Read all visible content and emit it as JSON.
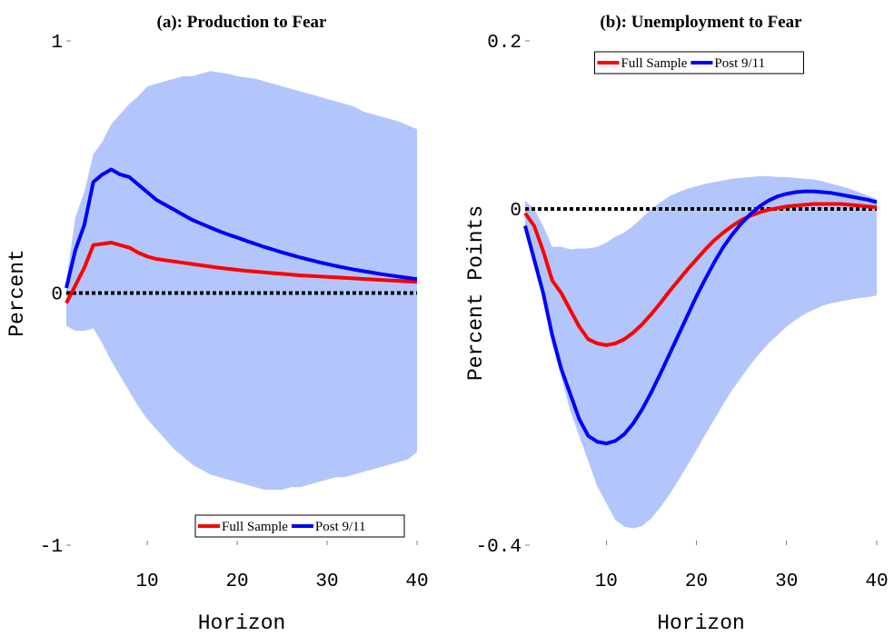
{
  "chart_data": [
    {
      "type": "line",
      "title": "(a): Production to Fear",
      "x_label": "Horizon",
      "y_label": "Percent",
      "x": [
        1,
        2,
        3,
        4,
        5,
        6,
        7,
        8,
        9,
        10,
        11,
        12,
        13,
        14,
        15,
        16,
        17,
        18,
        19,
        20,
        21,
        22,
        23,
        24,
        25,
        26,
        27,
        28,
        29,
        30,
        31,
        32,
        33,
        34,
        35,
        36,
        37,
        38,
        39,
        40
      ],
      "xlim": [
        1,
        40
      ],
      "xticks": [
        10,
        20,
        30,
        40
      ],
      "ylim": [
        -1,
        1
      ],
      "yticks": [
        -1,
        0,
        1
      ],
      "hline": 0,
      "legend": "lower right",
      "band": {
        "color": "#b3c6fb",
        "upper": [
          0.05,
          0.3,
          0.4,
          0.55,
          0.6,
          0.67,
          0.71,
          0.75,
          0.78,
          0.82,
          0.83,
          0.84,
          0.85,
          0.86,
          0.86,
          0.87,
          0.88,
          0.875,
          0.87,
          0.86,
          0.855,
          0.85,
          0.84,
          0.83,
          0.82,
          0.81,
          0.8,
          0.79,
          0.78,
          0.77,
          0.76,
          0.75,
          0.74,
          0.72,
          0.71,
          0.7,
          0.69,
          0.68,
          0.665,
          0.65
        ],
        "lower": [
          -0.13,
          -0.15,
          -0.15,
          -0.14,
          -0.2,
          -0.27,
          -0.33,
          -0.39,
          -0.45,
          -0.5,
          -0.54,
          -0.58,
          -0.62,
          -0.65,
          -0.68,
          -0.7,
          -0.72,
          -0.73,
          -0.74,
          -0.75,
          -0.76,
          -0.77,
          -0.78,
          -0.78,
          -0.78,
          -0.77,
          -0.77,
          -0.76,
          -0.75,
          -0.74,
          -0.73,
          -0.73,
          -0.72,
          -0.71,
          -0.7,
          -0.69,
          -0.68,
          -0.67,
          -0.66,
          -0.63
        ]
      },
      "series": [
        {
          "name": "Full Sample",
          "color": "#ff0000",
          "values": [
            -0.04,
            0.03,
            0.1,
            0.19,
            0.195,
            0.2,
            0.19,
            0.18,
            0.16,
            0.145,
            0.135,
            0.13,
            0.125,
            0.12,
            0.115,
            0.11,
            0.105,
            0.1,
            0.096,
            0.092,
            0.088,
            0.085,
            0.082,
            0.079,
            0.076,
            0.073,
            0.07,
            0.068,
            0.066,
            0.064,
            0.062,
            0.06,
            0.058,
            0.056,
            0.054,
            0.052,
            0.05,
            0.048,
            0.046,
            0.044
          ]
        },
        {
          "name": "Post 9/11",
          "color": "#0000ff",
          "values": [
            0.02,
            0.17,
            0.27,
            0.44,
            0.47,
            0.49,
            0.47,
            0.46,
            0.43,
            0.4,
            0.37,
            0.35,
            0.33,
            0.31,
            0.29,
            0.275,
            0.26,
            0.245,
            0.232,
            0.22,
            0.207,
            0.195,
            0.183,
            0.172,
            0.161,
            0.151,
            0.141,
            0.132,
            0.123,
            0.115,
            0.107,
            0.1,
            0.093,
            0.087,
            0.081,
            0.075,
            0.07,
            0.065,
            0.06,
            0.055
          ]
        }
      ]
    },
    {
      "type": "line",
      "title": "(b): Unemployment to Fear",
      "x_label": "Horizon",
      "y_label": "Percent Points",
      "x": [
        1,
        2,
        3,
        4,
        5,
        6,
        7,
        8,
        9,
        10,
        11,
        12,
        13,
        14,
        15,
        16,
        17,
        18,
        19,
        20,
        21,
        22,
        23,
        24,
        25,
        26,
        27,
        28,
        29,
        30,
        31,
        32,
        33,
        34,
        35,
        36,
        37,
        38,
        39,
        40
      ],
      "xlim": [
        1,
        40
      ],
      "xticks": [
        10,
        20,
        30,
        40
      ],
      "ylim": [
        -0.4,
        0.2
      ],
      "yticks": [
        -0.4,
        0,
        0.2
      ],
      "hline": 0,
      "legend": "upper center",
      "band": {
        "color": "#b3c6fb",
        "upper": [
          0.01,
          0,
          -0.02,
          -0.045,
          -0.045,
          -0.048,
          -0.047,
          -0.047,
          -0.045,
          -0.04,
          -0.033,
          -0.028,
          -0.02,
          -0.01,
          0,
          0.008,
          0.015,
          0.02,
          0.024,
          0.027,
          0.03,
          0.032,
          0.034,
          0.036,
          0.037,
          0.038,
          0.039,
          0.039,
          0.038,
          0.038,
          0.037,
          0.036,
          0.035,
          0.033,
          0.03,
          0.027,
          0.024,
          0.02,
          0.016,
          0.012
        ],
        "lower": [
          -0.02,
          -0.06,
          -0.11,
          -0.16,
          -0.2,
          -0.24,
          -0.27,
          -0.3,
          -0.33,
          -0.35,
          -0.37,
          -0.378,
          -0.38,
          -0.377,
          -0.368,
          -0.355,
          -0.34,
          -0.323,
          -0.305,
          -0.287,
          -0.268,
          -0.25,
          -0.232,
          -0.215,
          -0.2,
          -0.185,
          -0.172,
          -0.16,
          -0.15,
          -0.14,
          -0.132,
          -0.125,
          -0.12,
          -0.115,
          -0.112,
          -0.11,
          -0.108,
          -0.106,
          -0.105,
          -0.103
        ]
      },
      "series": [
        {
          "name": "Full Sample",
          "color": "#ff0000",
          "values": [
            -0.005,
            -0.02,
            -0.05,
            -0.085,
            -0.1,
            -0.12,
            -0.14,
            -0.155,
            -0.16,
            -0.162,
            -0.16,
            -0.155,
            -0.147,
            -0.137,
            -0.125,
            -0.112,
            -0.098,
            -0.085,
            -0.072,
            -0.06,
            -0.048,
            -0.037,
            -0.028,
            -0.02,
            -0.013,
            -0.008,
            -0.004,
            -0.001,
            0.001,
            0.003,
            0.004,
            0.005,
            0.006,
            0.006,
            0.006,
            0.006,
            0.005,
            0.004,
            0.003,
            0.002
          ]
        },
        {
          "name": "Post 9/11",
          "color": "#0000ff",
          "values": [
            -0.02,
            -0.06,
            -0.1,
            -0.15,
            -0.19,
            -0.22,
            -0.25,
            -0.27,
            -0.277,
            -0.279,
            -0.276,
            -0.268,
            -0.255,
            -0.238,
            -0.218,
            -0.196,
            -0.173,
            -0.15,
            -0.127,
            -0.104,
            -0.083,
            -0.063,
            -0.045,
            -0.03,
            -0.017,
            -0.006,
            0.003,
            0.01,
            0.015,
            0.018,
            0.02,
            0.021,
            0.021,
            0.02,
            0.019,
            0.017,
            0.015,
            0.013,
            0.011,
            0.008
          ]
        }
      ]
    }
  ]
}
